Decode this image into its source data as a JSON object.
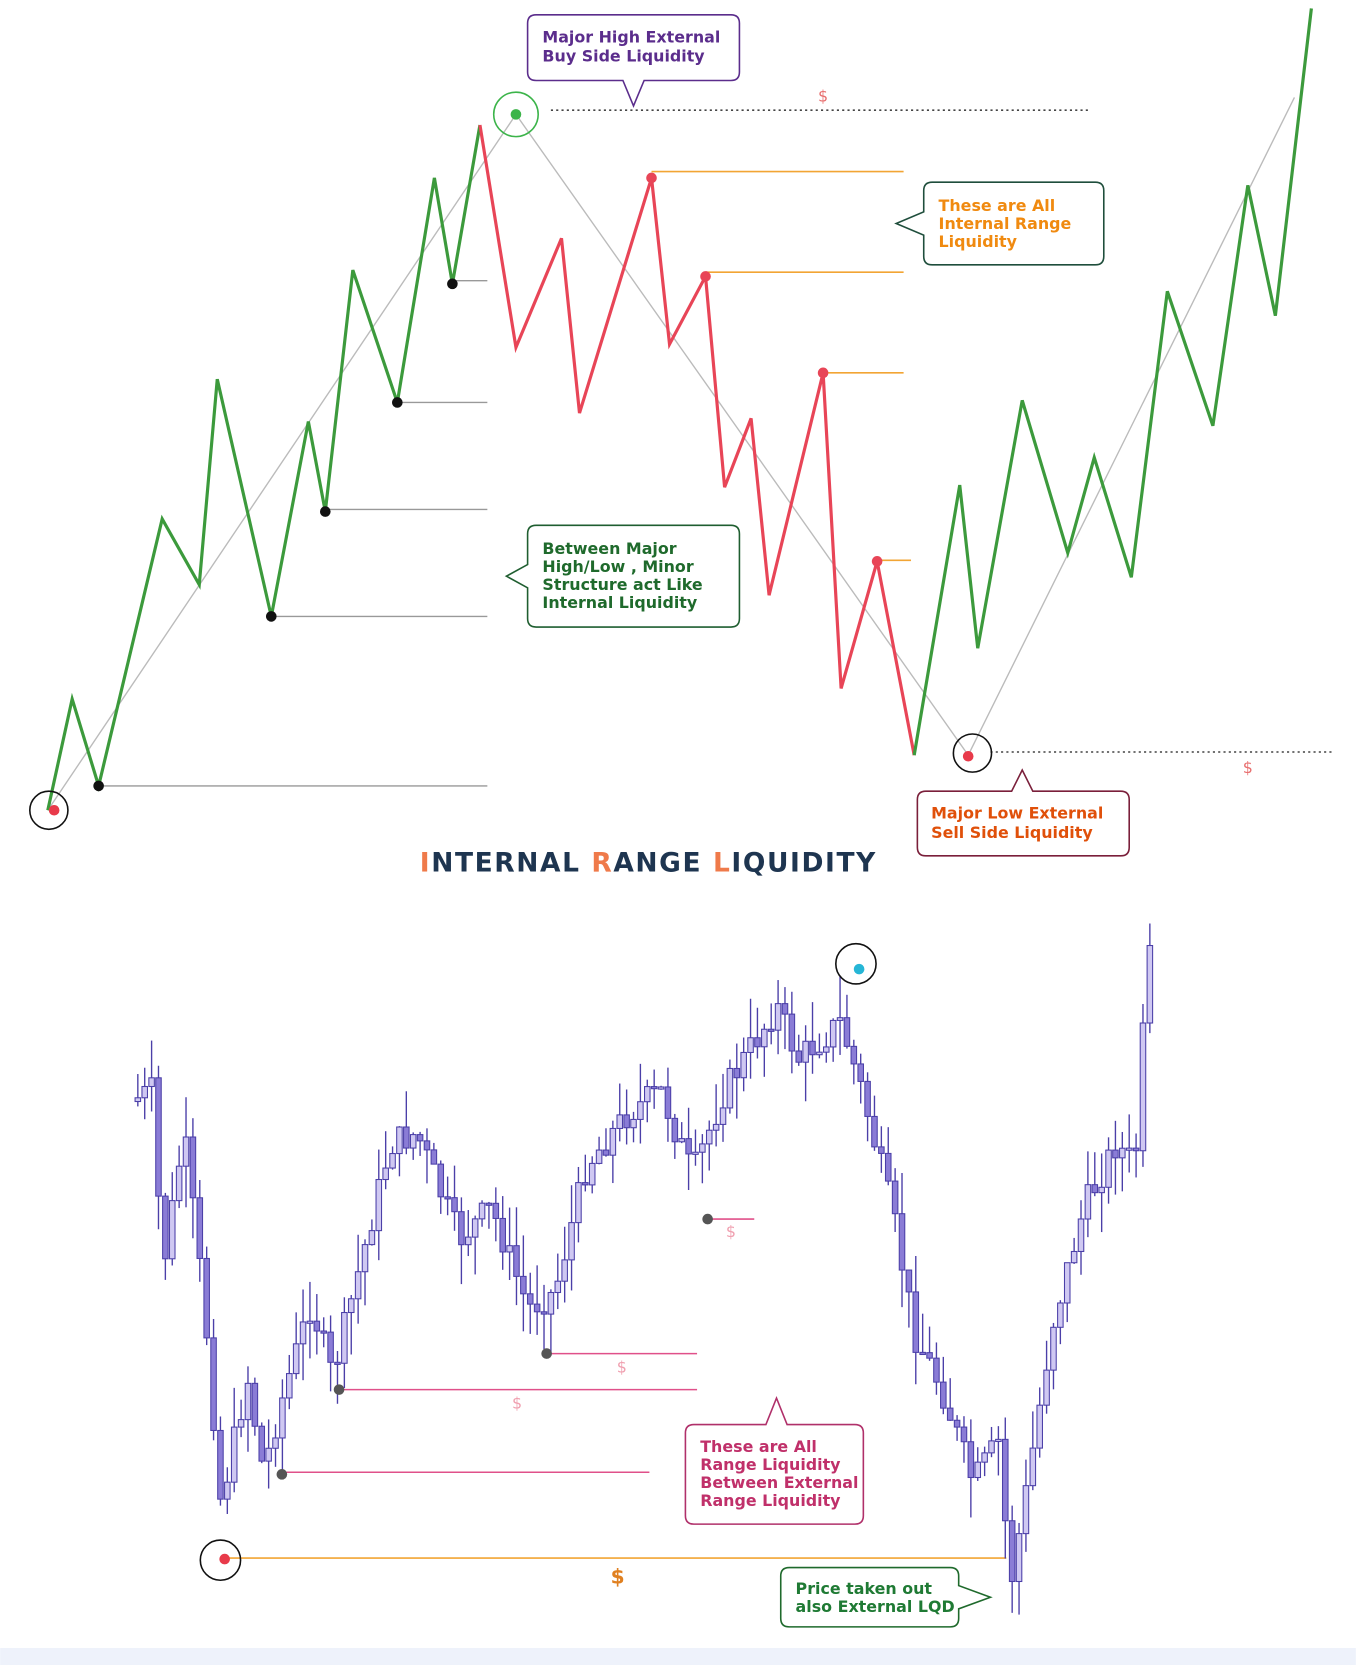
{
  "title": {
    "parts": [
      "I",
      "NTERNAL ",
      "R",
      "ANGE ",
      "L",
      "IQUIDITY"
    ]
  },
  "top": {
    "buy_side_callout": [
      "Major High External",
      "Buy Side Liquidity"
    ],
    "internal_callout": [
      "These are All",
      "Internal Range",
      "Liquidity"
    ],
    "minor_callout": [
      "Between Major",
      "High/Low , Minor",
      "Structure act Like",
      "Internal Liquidity"
    ],
    "sell_side_callout": [
      "Major Low External",
      "Sell Side Liquidity"
    ],
    "high_marker": "$",
    "low_marker": "$"
  },
  "bottom": {
    "range_callout": [
      "These are All",
      "Range Liquidity",
      "Between External",
      "Range Liquidity"
    ],
    "taken_callout": [
      "Price taken out",
      "also External LQD"
    ],
    "markers": [
      "$",
      "$",
      "$",
      "$"
    ],
    "external_marker": "$"
  }
}
